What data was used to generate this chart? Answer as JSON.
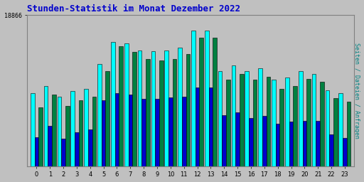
{
  "title": "Stunden-Statistik im Monat Dezember 2022",
  "title_color": "#0000cc",
  "ylabel": "Seiten / Dateien / Anfragen",
  "ylabel_color": "#008080",
  "background_color": "#c0c0c0",
  "plot_bg_color": "#c0c0c0",
  "bar_colors": [
    "#00ffff",
    "#0000cc",
    "#008040"
  ],
  "bar_edge_color": "#000000",
  "categories": [
    0,
    1,
    2,
    3,
    4,
    5,
    6,
    7,
    8,
    9,
    10,
    11,
    12,
    13,
    14,
    15,
    16,
    17,
    18,
    19,
    20,
    21,
    22,
    23
  ],
  "seiten": [
    17800,
    17900,
    17750,
    17830,
    17860,
    18200,
    18500,
    18480,
    18380,
    18370,
    18380,
    18420,
    18650,
    18650,
    18100,
    18180,
    18100,
    18140,
    17980,
    18010,
    18100,
    18060,
    17840,
    17800
  ],
  "dateien": [
    17200,
    17350,
    17180,
    17260,
    17300,
    17700,
    17800,
    17780,
    17720,
    17720,
    17740,
    17750,
    17880,
    17880,
    17500,
    17540,
    17460,
    17490,
    17380,
    17410,
    17420,
    17420,
    17240,
    17190
  ],
  "anfragen": [
    17600,
    17780,
    17620,
    17700,
    17750,
    18100,
    18440,
    18360,
    18260,
    18250,
    18260,
    18330,
    18560,
    18560,
    17980,
    18060,
    17980,
    18020,
    17860,
    17900,
    17990,
    17950,
    17730,
    17680
  ],
  "ylim": [
    16800,
    18866
  ],
  "yticks_positions": [
    18866
  ],
  "yticks_labels": [
    "18866"
  ]
}
